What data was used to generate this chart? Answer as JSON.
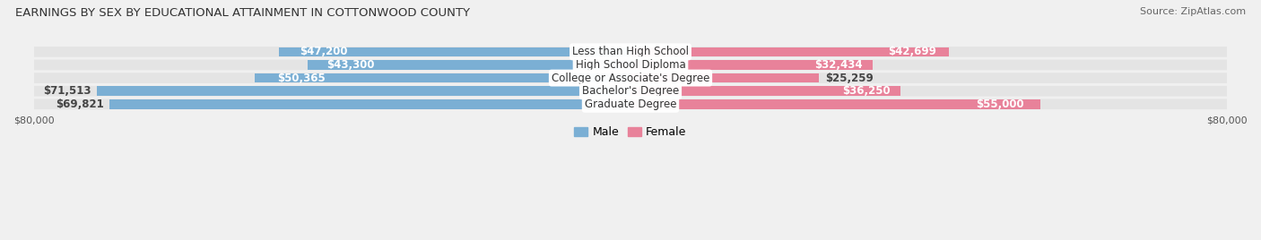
{
  "title": "EARNINGS BY SEX BY EDUCATIONAL ATTAINMENT IN COTTONWOOD COUNTY",
  "source": "Source: ZipAtlas.com",
  "categories": [
    "Less than High School",
    "High School Diploma",
    "College or Associate's Degree",
    "Bachelor's Degree",
    "Graduate Degree"
  ],
  "male_values": [
    47200,
    43300,
    50365,
    71513,
    69821
  ],
  "female_values": [
    42699,
    32434,
    25259,
    36250,
    55000
  ],
  "male_color": "#7bafd4",
  "female_color": "#e8829a",
  "bar_height": 0.72,
  "max_value": 80000,
  "background_color": "#f0f0f0",
  "row_bg_color": "#e4e4e4",
  "title_fontsize": 9.5,
  "source_fontsize": 8,
  "label_fontsize": 8.5,
  "category_fontsize": 8.5,
  "axis_label_fontsize": 8,
  "legend_fontsize": 9,
  "male_outside_threshold": 55000,
  "female_outside_threshold": 30000
}
